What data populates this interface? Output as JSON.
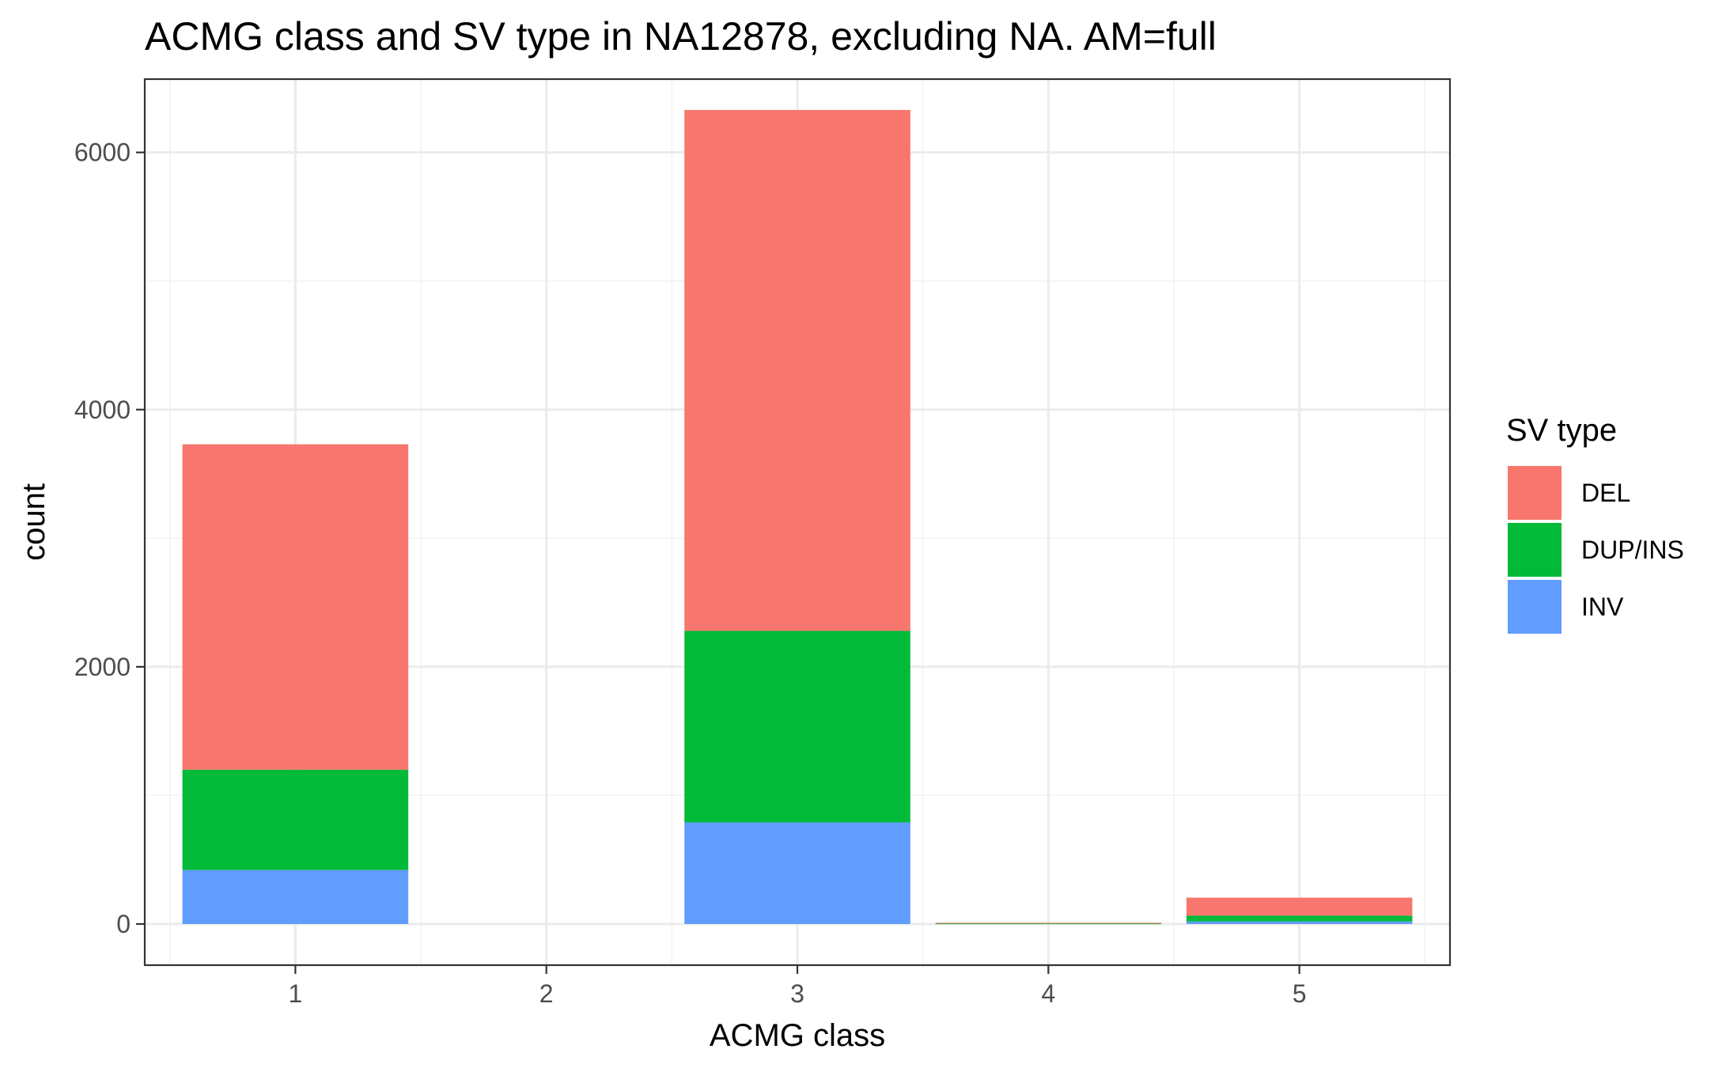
{
  "chart_data": {
    "type": "bar",
    "stacked": true,
    "title": "ACMG class and SV type in NA12878, excluding NA. AM=full",
    "xlabel": "ACMG class",
    "ylabel": "count",
    "categories": [
      "1",
      "2",
      "3",
      "4",
      "5"
    ],
    "ylim": [
      -320,
      6570
    ],
    "yticks": [
      0,
      2000,
      4000,
      6000
    ],
    "grid": true,
    "legend": {
      "title": "SV type",
      "position": "right"
    },
    "series": [
      {
        "name": "INV",
        "color": "#619CFF",
        "values": [
          420,
          0,
          790,
          0,
          20
        ]
      },
      {
        "name": "DUP/INS",
        "color": "#00BA38",
        "values": [
          780,
          0,
          1490,
          5,
          45
        ]
      },
      {
        "name": "DEL",
        "color": "#F8766D",
        "values": [
          2530,
          0,
          4050,
          5,
          140
        ]
      }
    ],
    "legend_order": [
      "DEL",
      "DUP/INS",
      "INV"
    ]
  }
}
